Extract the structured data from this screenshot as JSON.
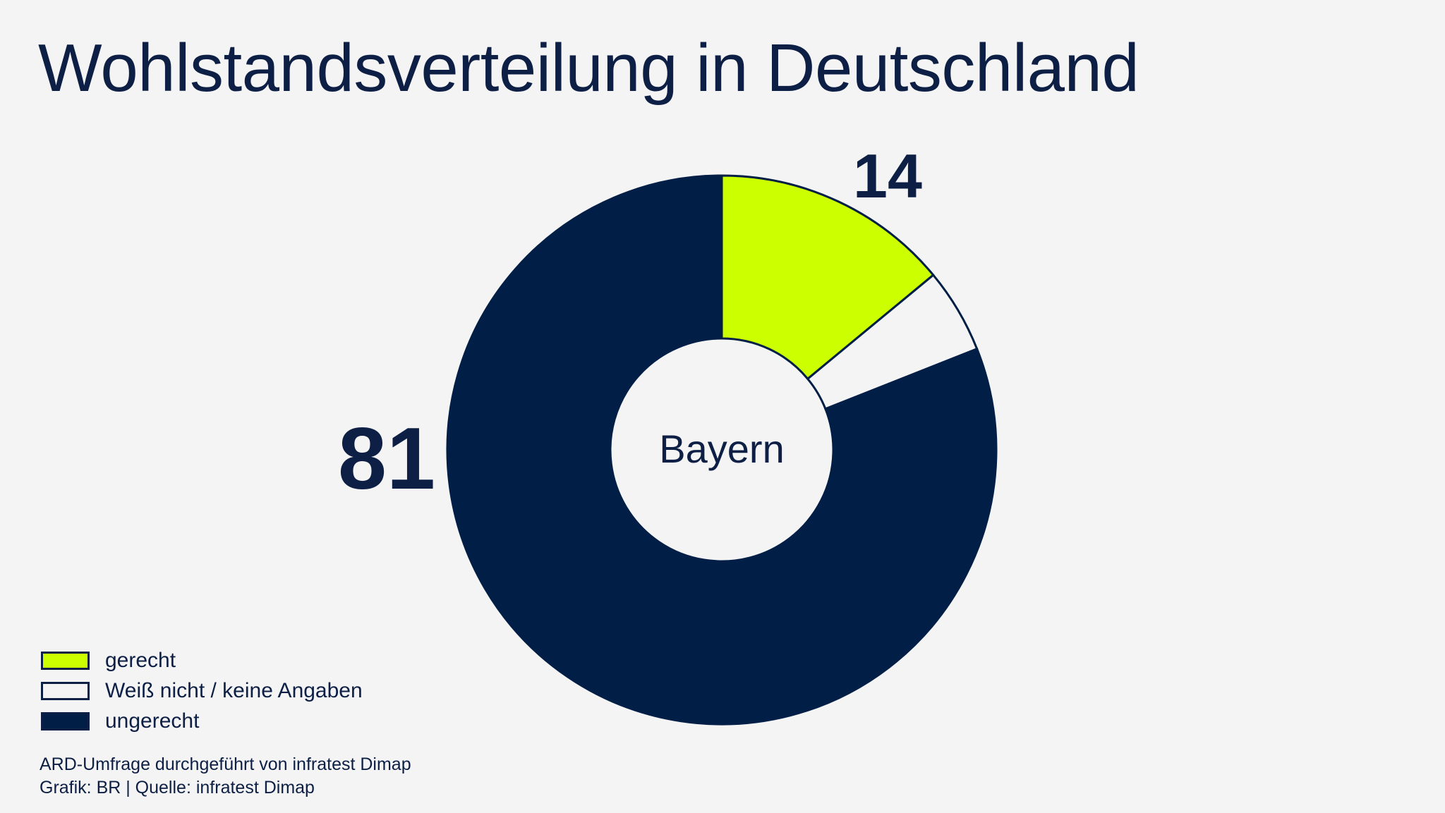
{
  "chart_data": {
    "type": "pie",
    "title": "Wohlstandsverteilung in Deutschland",
    "center_label": "Bayern",
    "slices": [
      {
        "label": "gerecht",
        "value": 14,
        "color": "#ccff00",
        "value_label": "14"
      },
      {
        "label": "Weiß nicht / keine Angaben",
        "value": 5,
        "color": "#f4f4f4",
        "value_label": ""
      },
      {
        "label": "ungerecht",
        "value": 81,
        "color": "#001e46",
        "value_label": "81"
      }
    ],
    "legend_placement": "bottom-left"
  },
  "footer": {
    "line1": "ARD-Umfrage durchgeführt von infratest Dimap",
    "line2": "Grafik: BR | Quelle: infratest Dimap"
  }
}
